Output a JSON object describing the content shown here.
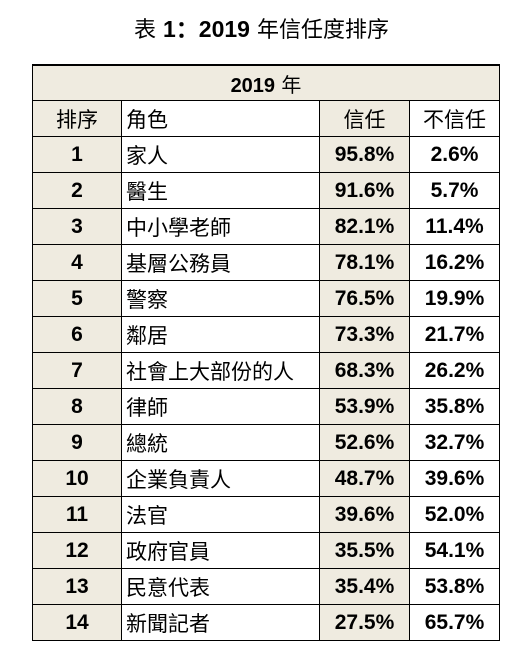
{
  "title": {
    "prefix": "表 ",
    "table_num": "1：2019",
    "suffix": " 年信任度排序"
  },
  "table": {
    "caption_year": "2019",
    "caption_unit": " 年",
    "headers": {
      "rank": "排序",
      "role": "角色",
      "trust": "信任",
      "distrust": "不信任"
    },
    "rows": [
      {
        "rank": "1",
        "role": "家人",
        "trust": "95.8%",
        "distrust": "2.6%"
      },
      {
        "rank": "2",
        "role": "醫生",
        "trust": "91.6%",
        "distrust": "5.7%"
      },
      {
        "rank": "3",
        "role": "中小學老師",
        "trust": "82.1%",
        "distrust": "11.4%"
      },
      {
        "rank": "4",
        "role": "基層公務員",
        "trust": "78.1%",
        "distrust": "16.2%"
      },
      {
        "rank": "5",
        "role": "警察",
        "trust": "76.5%",
        "distrust": "19.9%"
      },
      {
        "rank": "6",
        "role": "鄰居",
        "trust": "73.3%",
        "distrust": "21.7%"
      },
      {
        "rank": "7",
        "role": "社會上大部份的人",
        "trust": "68.3%",
        "distrust": "26.2%"
      },
      {
        "rank": "8",
        "role": "律師",
        "trust": "53.9%",
        "distrust": "35.8%"
      },
      {
        "rank": "9",
        "role": "總統",
        "trust": "52.6%",
        "distrust": "32.7%"
      },
      {
        "rank": "10",
        "role": "企業負責人",
        "trust": "48.7%",
        "distrust": "39.6%"
      },
      {
        "rank": "11",
        "role": "法官",
        "trust": "39.6%",
        "distrust": "52.0%"
      },
      {
        "rank": "12",
        "role": "政府官員",
        "trust": "35.5%",
        "distrust": "54.1%"
      },
      {
        "rank": "13",
        "role": "民意代表",
        "trust": "35.4%",
        "distrust": "53.8%"
      },
      {
        "rank": "14",
        "role": "新聞記者",
        "trust": "27.5%",
        "distrust": "65.7%"
      }
    ]
  },
  "colors": {
    "header_shade": "#efebe0",
    "border": "#000000"
  }
}
